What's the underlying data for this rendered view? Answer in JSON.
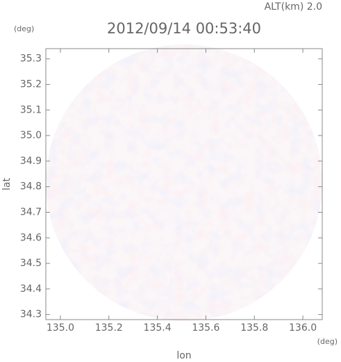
{
  "chart_data": {
    "type": "radar-map",
    "title": "2012/09/14 00:53:40",
    "subtitle": "ALT(km) 2.0",
    "x_label": "lon",
    "x_unit": "(deg)",
    "y_label": "lat",
    "y_unit": "(deg)",
    "xlim": [
      134.94,
      136.08
    ],
    "ylim": [
      34.28,
      35.34
    ],
    "xticks": [
      {
        "value": 135,
        "label": "135.0"
      },
      135.2,
      135.4,
      135.6,
      135.8,
      {
        "value": 136,
        "label": "136.0"
      }
    ],
    "yticks": [
      {
        "value": 34.3,
        "label": "34.3"
      },
      34.4,
      34.5,
      34.6,
      34.7,
      34.8,
      34.9,
      {
        "value": 35,
        "label": "35.0"
      },
      35.1,
      35.2,
      35.3
    ]
  }
}
